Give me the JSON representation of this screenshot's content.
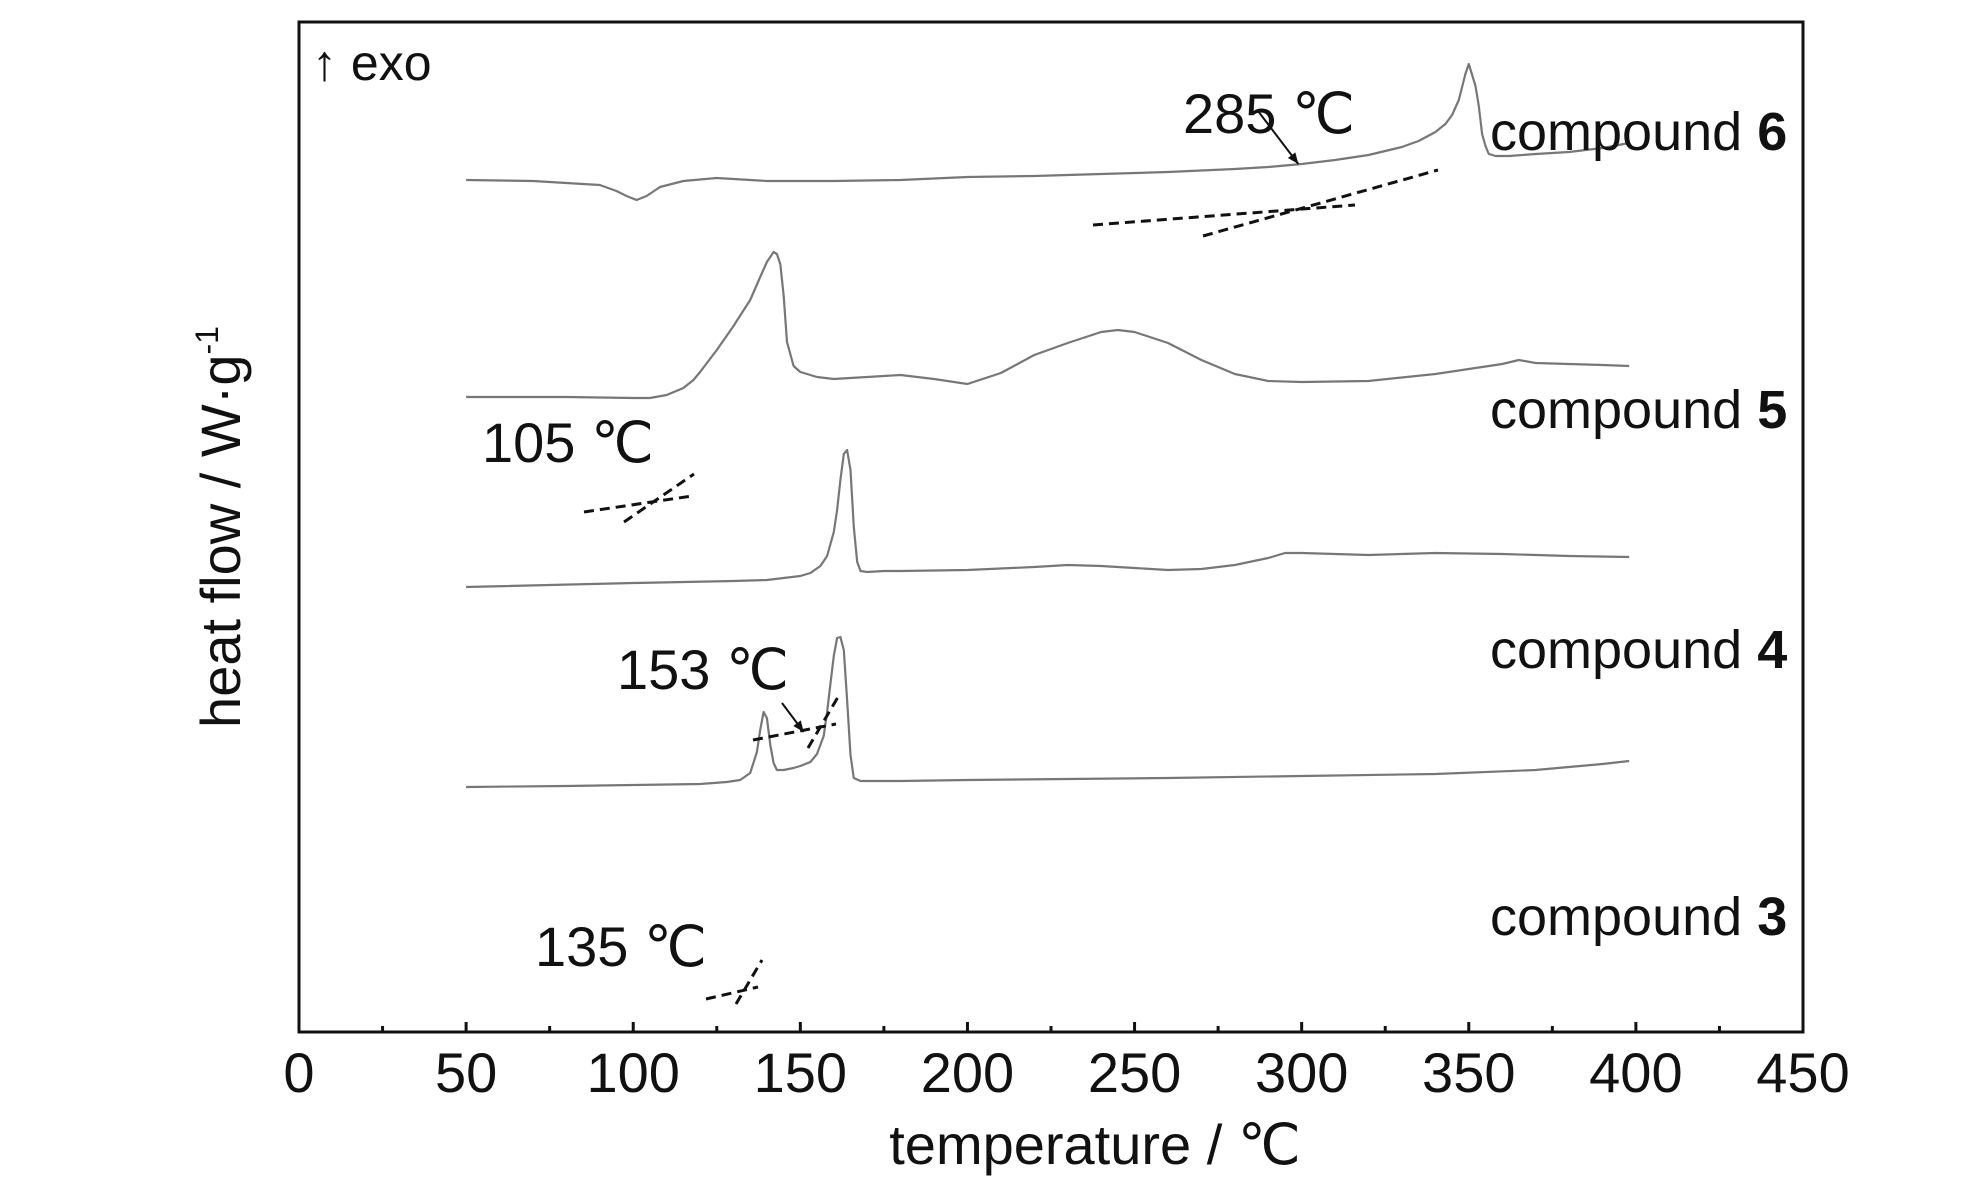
{
  "chart_data": {
    "type": "line",
    "title": "",
    "xlabel": "temperature / ℃",
    "ylabel": "heat flow / W·g",
    "ylabel_superscript": "-1",
    "exo_label": "↑ exo",
    "xlim": [
      0,
      450
    ],
    "xticks": [
      0,
      50,
      100,
      150,
      200,
      250,
      300,
      350,
      400,
      450
    ],
    "minor_xticks": [
      25,
      75,
      125,
      175,
      225,
      275,
      325,
      375,
      425
    ],
    "y_axis_ticks": false,
    "grid": false,
    "legend": "inline labels at right of each curve",
    "series": [
      {
        "name": "compound 6",
        "label_prefix": "compound ",
        "label_num": "6",
        "onset_label": "285 ℃",
        "onset_x": 299,
        "x": [
          50,
          70,
          90,
          95,
          98,
          101,
          104,
          108,
          115,
          125,
          140,
          160,
          180,
          200,
          220,
          240,
          260,
          280,
          290,
          300,
          310,
          320,
          330,
          335,
          340,
          343,
          345,
          347,
          349,
          350,
          352,
          353,
          354,
          355,
          356,
          358,
          362,
          370,
          380,
          390,
          398
        ],
        "y": [
          180,
          181,
          185,
          191,
          196,
          200,
          196,
          187,
          181,
          178,
          181,
          181,
          180,
          177,
          176,
          174,
          172,
          169,
          167,
          164,
          160,
          155,
          147,
          141,
          132,
          124,
          115,
          100,
          74,
          64,
          86,
          106,
          134,
          146,
          154,
          156,
          156,
          154,
          152,
          148,
          143
        ]
      },
      {
        "name": "compound 5",
        "label_prefix": "compound ",
        "label_num": "5",
        "onset_label": "105 ℃",
        "onset_x": 106,
        "x": [
          50,
          80,
          100,
          105,
          110,
          115,
          118,
          120,
          125,
          130,
          135,
          138,
          140,
          142,
          143,
          144,
          145,
          146,
          148,
          150,
          152,
          155,
          160,
          170,
          180,
          190,
          200,
          210,
          220,
          230,
          240,
          245,
          250,
          260,
          270,
          280,
          290,
          300,
          320,
          340,
          360,
          365,
          370,
          380,
          390,
          398
        ],
        "y": [
          397,
          397,
          398,
          398,
          395,
          388,
          380,
          372,
          350,
          326,
          300,
          277,
          262,
          252,
          254,
          264,
          295,
          342,
          366,
          372,
          374,
          377,
          379,
          377,
          375,
          379,
          384,
          373,
          355,
          343,
          332,
          330,
          332,
          343,
          360,
          374,
          381,
          382,
          381,
          374,
          364,
          360,
          363,
          364,
          365,
          366
        ]
      },
      {
        "name": "compound 4",
        "label_prefix": "compound ",
        "label_num": "4",
        "onset_label": "153 ℃",
        "onset_x": 151,
        "x": [
          50,
          100,
          130,
          140,
          145,
          150,
          153,
          156,
          158,
          160,
          161,
          162,
          163,
          164,
          165,
          166,
          167,
          168,
          170,
          175,
          180,
          200,
          220,
          230,
          240,
          250,
          260,
          270,
          280,
          290,
          295,
          300,
          320,
          340,
          360,
          380,
          398
        ],
        "y": [
          587,
          583,
          581,
          580,
          578,
          576,
          573,
          566,
          556,
          532,
          510,
          480,
          454,
          450,
          470,
          527,
          562,
          571,
          572,
          571,
          571,
          570,
          567,
          565,
          566,
          568,
          570,
          569,
          565,
          558,
          553,
          553,
          555,
          553,
          554,
          556,
          557
        ]
      },
      {
        "name": "compound 3",
        "label_prefix": "compound ",
        "label_num": "3",
        "onset_label": "135 ℃",
        "onset_x": 132,
        "x": [
          50,
          80,
          100,
          120,
          128,
          132,
          135,
          137,
          138,
          139,
          140,
          141,
          142,
          143,
          145,
          148,
          150,
          153,
          155,
          157,
          158,
          159,
          160,
          161,
          162,
          163,
          164,
          165,
          166,
          168,
          170,
          180,
          200,
          230,
          260,
          300,
          340,
          370,
          390,
          398
        ],
        "y": [
          787,
          786,
          785,
          784,
          782,
          780,
          773,
          752,
          730,
          712,
          718,
          745,
          763,
          770,
          770,
          768,
          766,
          762,
          754,
          736,
          712,
          684,
          656,
          638,
          637,
          650,
          700,
          755,
          778,
          781,
          781,
          781,
          780,
          779,
          778,
          776,
          774,
          770,
          764,
          761
        ]
      }
    ]
  }
}
